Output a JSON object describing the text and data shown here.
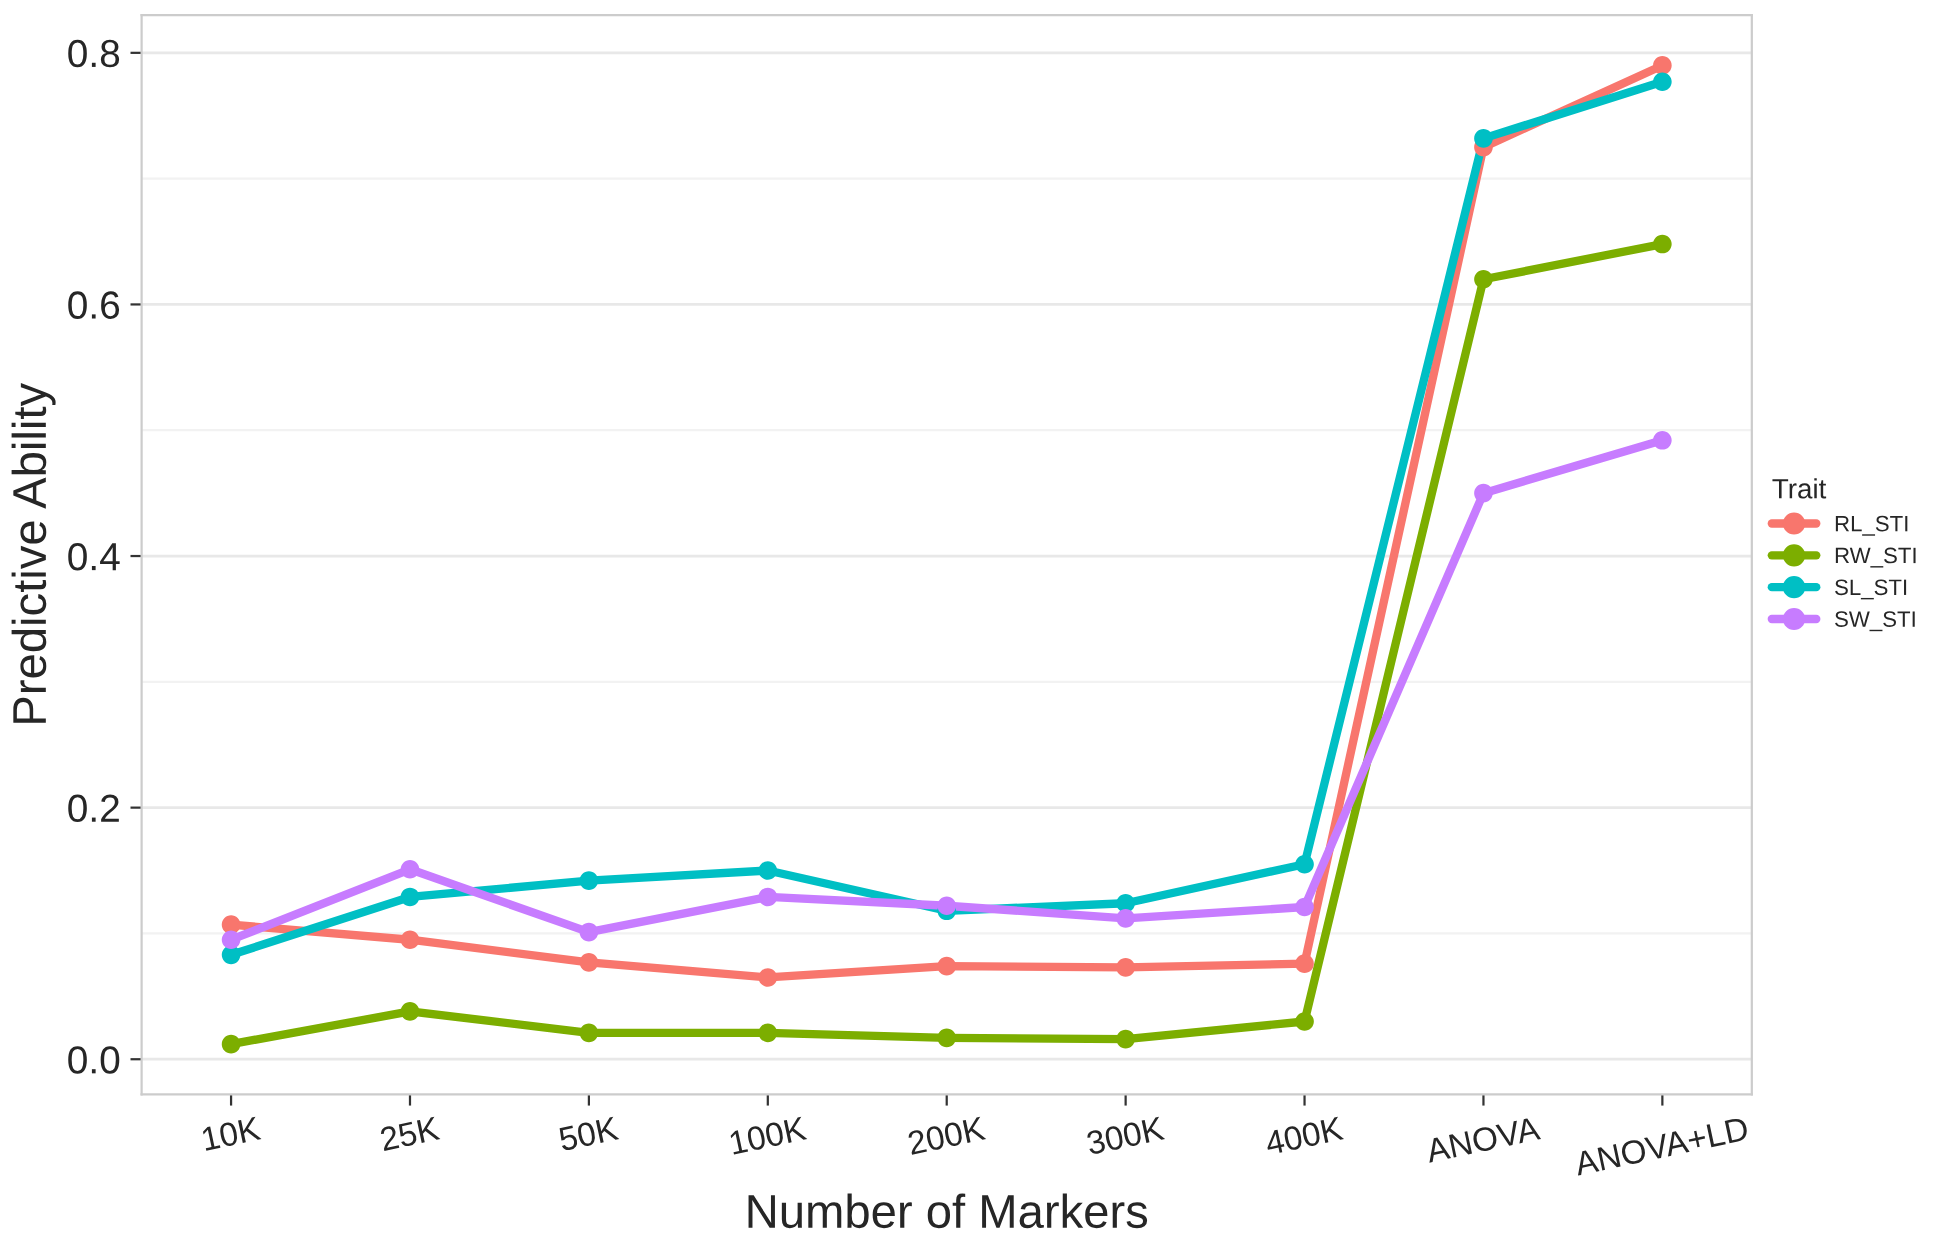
{
  "chart_data": {
    "type": "line",
    "xlabel": "Number of Markers",
    "ylabel": "Predictive Ability",
    "legend_title": "Trait",
    "categories": [
      "10K",
      "25K",
      "50K",
      "100K",
      "200K",
      "300K",
      "400K",
      "ANOVA",
      "ANOVA+LD"
    ],
    "series": [
      {
        "name": "RL_STI",
        "color": "#f8766d",
        "values": [
          0.107,
          0.095,
          0.077,
          0.065,
          0.074,
          0.073,
          0.076,
          0.725,
          0.79
        ]
      },
      {
        "name": "RW_STI",
        "color": "#7cae00",
        "values": [
          0.012,
          0.038,
          0.021,
          0.021,
          0.017,
          0.016,
          0.03,
          0.62,
          0.648
        ]
      },
      {
        "name": "SL_STI",
        "color": "#00bfc4",
        "values": [
          0.083,
          0.129,
          0.142,
          0.15,
          0.118,
          0.124,
          0.155,
          0.732,
          0.777
        ]
      },
      {
        "name": "SW_STI",
        "color": "#c77cff",
        "values": [
          0.095,
          0.151,
          0.101,
          0.129,
          0.122,
          0.112,
          0.121,
          0.45,
          0.492
        ]
      }
    ],
    "ylim": [
      -0.028,
      0.83
    ],
    "yticks": [
      {
        "value": 0.0,
        "label": "0.0"
      },
      {
        "value": 0.2,
        "label": "0.2"
      },
      {
        "value": 0.4,
        "label": "0.4"
      },
      {
        "value": 0.6,
        "label": "0.6"
      },
      {
        "value": 0.8,
        "label": "0.8"
      }
    ],
    "grid": "y",
    "legend": "right",
    "marker": "circle",
    "line_style": "solid"
  }
}
